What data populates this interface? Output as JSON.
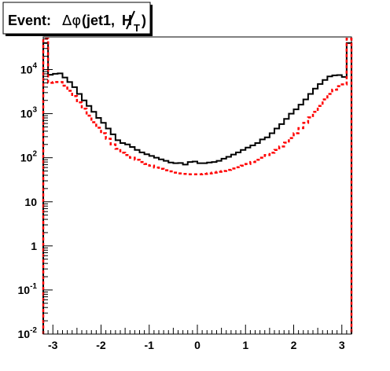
{
  "chart_data": {
    "type": "histogram",
    "title": {
      "prefix": "Event:",
      "delta_phi": "Δφ",
      "open": "(jet1,",
      "met_symbol": "H",
      "met_subscript": "T",
      "close": ")"
    },
    "xlim": [
      -3.2,
      3.2
    ],
    "ylim_log10": [
      -2,
      4.74
    ],
    "yscale": "log",
    "grid": false,
    "xticks": [
      {
        "value": -3,
        "label": "-3"
      },
      {
        "value": -2,
        "label": "-2"
      },
      {
        "value": -1,
        "label": "-1"
      },
      {
        "value": 0,
        "label": "0"
      },
      {
        "value": 1,
        "label": "1"
      },
      {
        "value": 2,
        "label": "2"
      },
      {
        "value": 3,
        "label": "3"
      }
    ],
    "yticks": [
      {
        "exp": 4,
        "base": "10",
        "sup": "4"
      },
      {
        "exp": 3,
        "base": "10",
        "sup": "3"
      },
      {
        "exp": 2,
        "base": "10",
        "sup": "2"
      },
      {
        "exp": 1,
        "base": "10",
        "sup": ""
      },
      {
        "exp": 0,
        "base": "1",
        "sup": ""
      },
      {
        "exp": -1,
        "base": "10",
        "sup": "-1"
      },
      {
        "exp": -2,
        "base": "10",
        "sup": "-2"
      }
    ],
    "bin_edges": [
      -3.2,
      -3.1,
      -3.0,
      -2.9,
      -2.8,
      -2.7,
      -2.6,
      -2.5,
      -2.4,
      -2.3,
      -2.2,
      -2.1,
      -2.0,
      -1.9,
      -1.8,
      -1.7,
      -1.6,
      -1.5,
      -1.4,
      -1.3,
      -1.2,
      -1.1,
      -1.0,
      -0.9,
      -0.8,
      -0.7,
      -0.6,
      -0.5,
      -0.4,
      -0.3,
      -0.2,
      -0.1,
      0.0,
      0.1,
      0.2,
      0.3,
      0.4,
      0.5,
      0.6,
      0.7,
      0.8,
      0.9,
      1.0,
      1.1,
      1.2,
      1.3,
      1.4,
      1.5,
      1.6,
      1.7,
      1.8,
      1.9,
      2.0,
      2.1,
      2.2,
      2.3,
      2.4,
      2.5,
      2.6,
      2.7,
      2.8,
      2.9,
      3.0,
      3.1,
      3.2
    ],
    "series": [
      {
        "color": "#000000",
        "dash": "solid",
        "values": [
          40000,
          7600,
          8000,
          8200,
          6600,
          5200,
          4000,
          2800,
          2000,
          1500,
          1100,
          800,
          620,
          460,
          340,
          250,
          215,
          200,
          175,
          150,
          132,
          120,
          110,
          100,
          92,
          85,
          78,
          75,
          76,
          70,
          80,
          82,
          75,
          75,
          78,
          80,
          85,
          95,
          105,
          118,
          132,
          150,
          170,
          190,
          215,
          260,
          290,
          360,
          460,
          580,
          760,
          1000,
          1250,
          1600,
          2100,
          2800,
          3700,
          4700,
          5800,
          7000,
          7400,
          7500,
          6800,
          40000
        ]
      },
      {
        "color": "#ff0000",
        "dash": "dashed",
        "values": [
          50000,
          5000,
          5200,
          5200,
          4300,
          3300,
          2500,
          1800,
          1300,
          900,
          640,
          480,
          360,
          270,
          200,
          160,
          130,
          115,
          100,
          90,
          80,
          72,
          66,
          60,
          56,
          52,
          49,
          46,
          44,
          43,
          42,
          42,
          42,
          43,
          44,
          46,
          48,
          50,
          53,
          57,
          61,
          66,
          72,
          80,
          90,
          100,
          115,
          130,
          150,
          180,
          220,
          280,
          360,
          470,
          620,
          820,
          1100,
          1500,
          2100,
          2800,
          3500,
          4200,
          4600,
          50000
        ]
      }
    ]
  }
}
